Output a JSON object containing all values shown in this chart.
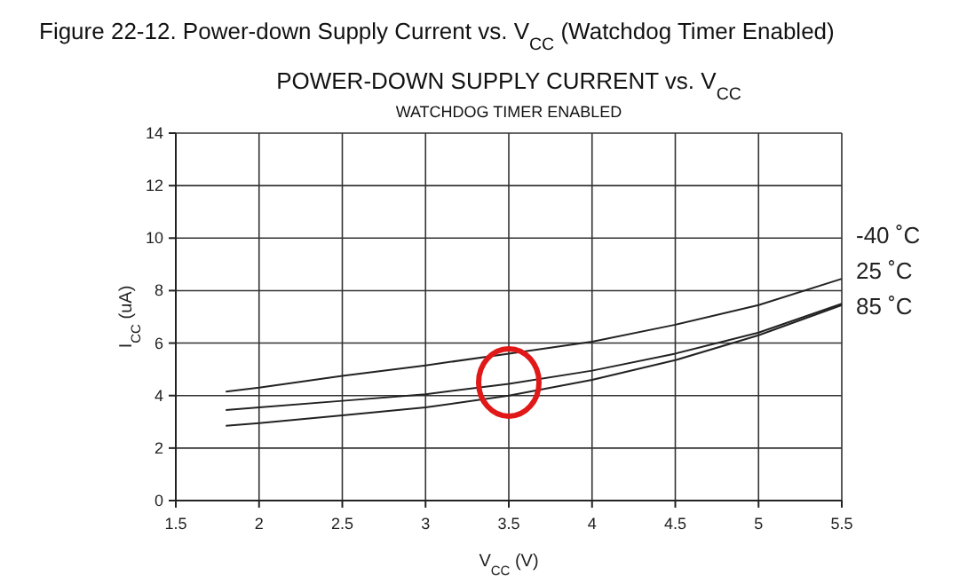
{
  "chart_data": {
    "type": "line",
    "title": "POWER-DOWN SUPPLY CURRENT vs. V$_{CC}$",
    "subtitle": "WATCHDOG TIMER ENABLED",
    "annotations": [
      "Figure 22-12. Power-down Supply Current vs. V$_{CC}$ (Watchdog Timer Enabled)"
    ],
    "xlabel": "V$_{CC}$ (V)",
    "ylabel": "I$_{CC}$ (uA)",
    "x": [
      1.8,
      2,
      2.5,
      3,
      3.5,
      4,
      4.5,
      5,
      5.5
    ],
    "series": [
      {
        "name": "-40 ˚C",
        "color": "#222222",
        "values": [
          4.15,
          4.3,
          4.75,
          5.15,
          5.6,
          6.05,
          6.7,
          7.45,
          8.45
        ]
      },
      {
        "name": "25 ˚C",
        "color": "#222222",
        "values": [
          3.45,
          3.55,
          3.8,
          4.05,
          4.45,
          4.95,
          5.6,
          6.4,
          7.5
        ]
      },
      {
        "name": "85 ˚C",
        "color": "#222222",
        "values": [
          2.85,
          2.95,
          3.25,
          3.55,
          4.0,
          4.6,
          5.35,
          6.3,
          7.45
        ]
      }
    ],
    "xlim": [
      1.5,
      5.5
    ],
    "xticks": [
      1.5,
      2,
      2.5,
      3,
      3.5,
      4,
      4.5,
      5,
      5.5
    ],
    "ylim": [
      0,
      14
    ],
    "yticks": [
      0,
      2,
      4,
      6,
      8,
      10,
      12,
      14
    ],
    "grid": true,
    "marker": "none",
    "line_style": "solid"
  }
}
